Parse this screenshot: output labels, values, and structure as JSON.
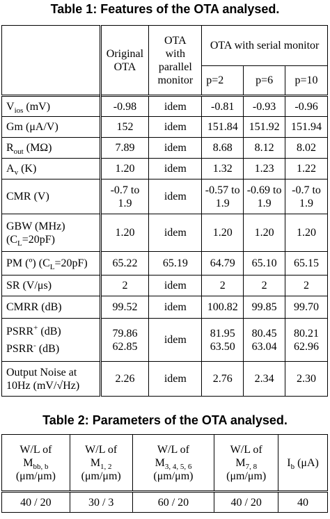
{
  "table1": {
    "caption": "Table 1: Features of the OTA analysed.",
    "headers": {
      "original": [
        "Original",
        "OTA"
      ],
      "parallel": [
        "OTA",
        "with",
        "parallel",
        "monitor"
      ],
      "serial": "OTA with serial monitor",
      "p_values": [
        "p=2",
        "p=6",
        "p=10"
      ]
    },
    "rows": [
      {
        "label_main": "V",
        "label_sub": "ios",
        "label_rest": " (mV)",
        "values": [
          "-0.98",
          "idem",
          "-0.81",
          "-0.93",
          "-0.96"
        ]
      },
      {
        "label_main": "Gm (μA/V)",
        "values": [
          "152",
          "idem",
          "151.84",
          "151.92",
          "151.94"
        ]
      },
      {
        "label_main": "R",
        "label_sub": "out",
        "label_rest": " (MΩ)",
        "values": [
          "7.89",
          "idem",
          "8.68",
          "8.12",
          "8.02"
        ]
      },
      {
        "label_main": "A",
        "label_sub": "v",
        "label_rest": " (K)",
        "values": [
          "1.20",
          "idem",
          "1.32",
          "1.23",
          "1.22"
        ]
      },
      {
        "label_main": "CMR (V)",
        "values": [
          "-0.7 to 1.9",
          "idem",
          "-0.57 to 1.9",
          "-0.69 to 1.9",
          "-0.7 to 1.9"
        ]
      },
      {
        "label_main": "GBW (MHz)",
        "label_line2": "(C",
        "label_line2_sub": "L",
        "label_line2_rest": "=20pF)",
        "values": [
          "1.20",
          "idem",
          "1.20",
          "1.20",
          "1.20"
        ]
      },
      {
        "label_main": "PM (º) (C",
        "label_sub": "L",
        "label_rest": "=20pF)",
        "values": [
          "65.22",
          "65.19",
          "64.79",
          "65.10",
          "65.15"
        ]
      },
      {
        "label_main": "SR (V/μs)",
        "values": [
          "2",
          "idem",
          "2",
          "2",
          "2"
        ]
      },
      {
        "label_main": "CMRR (dB)",
        "values": [
          "99.52",
          "idem",
          "100.82",
          "99.85",
          "99.70"
        ]
      },
      {
        "label_main": "PSRR",
        "label_sup": "+",
        "label_rest": " (dB)",
        "label_line2": "PSRR",
        "label_line2_sup": "-",
        "label_line2_rest": " (dB)",
        "values": [
          "79.86 62.85",
          "idem",
          "81.95 63.50",
          "80.45 63.04",
          "80.21 62.96"
        ]
      },
      {
        "label_main": "Output Noise at",
        "label_line2": "10Hz (mV/√Hz)",
        "values": [
          "2.26",
          "idem",
          "2.76",
          "2.34",
          "2.30"
        ]
      }
    ]
  },
  "table2": {
    "caption": "Table 2: Parameters of the OTA analysed.",
    "headers": [
      {
        "l1": "W/L of",
        "main": "M",
        "sub": "bb, b",
        "l3": "(μm/μm)"
      },
      {
        "l1": "W/L of",
        "main": "M",
        "sub": "1, 2",
        "l3": "(μm/μm)"
      },
      {
        "l1": "W/L of",
        "main": "M",
        "sub": "3, 4, 5, 6",
        "l3": "(μm/μm)"
      },
      {
        "l1": "W/L of",
        "main": "M",
        "sub": "7, 8",
        "l3": "(μm/μm)"
      },
      {
        "main": "I",
        "sub": "b",
        "rest": " (μA)"
      }
    ],
    "values": [
      "40 / 20",
      "30 / 3",
      "60 / 20",
      "40 / 20",
      "40"
    ]
  }
}
